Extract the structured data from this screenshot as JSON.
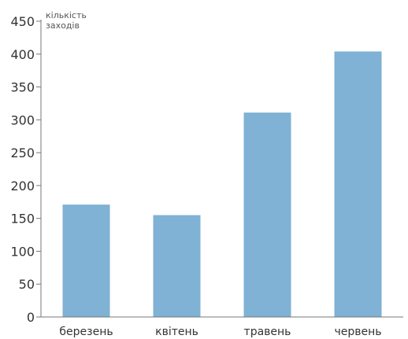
{
  "chart_data": {
    "type": "bar",
    "title": "",
    "ylabel": "кількість заходів",
    "ylabel_lines": [
      "кількість",
      "заходів"
    ],
    "xlabel": "",
    "categories": [
      "березень",
      "квітень",
      "травень",
      "червень"
    ],
    "values": [
      171,
      155,
      311,
      404
    ],
    "ylim": [
      0,
      450
    ],
    "yticks": [
      0,
      50,
      100,
      150,
      200,
      250,
      300,
      350,
      400,
      450
    ],
    "grid": false,
    "legend": "none",
    "bar_color": "#7fb2d4",
    "axis_color": "#777777"
  }
}
